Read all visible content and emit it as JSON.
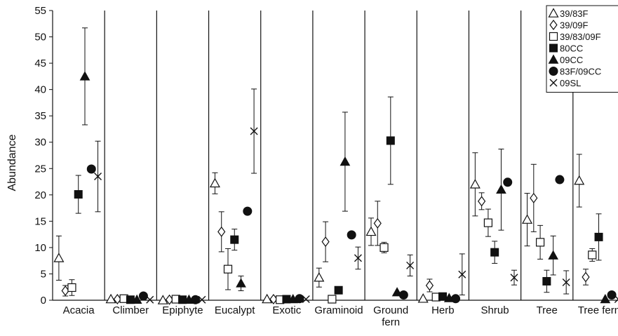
{
  "chart_data": {
    "type": "scatter",
    "ylabel": "Abundance",
    "xlabel": "",
    "ylim": [
      0,
      55
    ],
    "yticks": [
      0,
      5,
      10,
      15,
      20,
      25,
      30,
      35,
      40,
      45,
      50,
      55
    ],
    "grid": false,
    "legend_position": "top-right",
    "error_bars": true,
    "categories": [
      {
        "lines": [
          "Acacia"
        ]
      },
      {
        "lines": [
          "Climber"
        ]
      },
      {
        "lines": [
          "Epiphyte"
        ]
      },
      {
        "lines": [
          "Eucalypt"
        ]
      },
      {
        "lines": [
          "Exotic"
        ]
      },
      {
        "lines": [
          "Graminoid"
        ]
      },
      {
        "lines": [
          "Ground",
          "fern"
        ]
      },
      {
        "lines": [
          "Herb"
        ]
      },
      {
        "lines": [
          "Shrub"
        ]
      },
      {
        "lines": [
          "Tree"
        ]
      },
      {
        "lines": [
          "Tree fern"
        ]
      }
    ],
    "series": [
      {
        "name": "39/83F",
        "marker": "triangle-open",
        "values": [
          8,
          0.2,
          0,
          22.2,
          0.2,
          4.3,
          13,
          0.3,
          22,
          15.3,
          22.7
        ],
        "errors": [
          4.2,
          0,
          0,
          2,
          0,
          1.8,
          2.6,
          0,
          6,
          5,
          5
        ]
      },
      {
        "name": "39/09F",
        "marker": "diamond-open",
        "values": [
          1.8,
          0.2,
          0.1,
          13,
          0.2,
          11.1,
          14.6,
          2.8,
          18.8,
          19.4,
          4.4
        ],
        "errors": [
          1,
          0,
          0,
          3.8,
          0,
          3.8,
          4.2,
          1.2,
          1.6,
          6.4,
          1.5
        ]
      },
      {
        "name": "39/83/09F",
        "marker": "square-open",
        "values": [
          2.4,
          0.3,
          0.2,
          5.9,
          0.1,
          0.2,
          10,
          0.6,
          14.7,
          11,
          8.6
        ],
        "errors": [
          1.5,
          0,
          0,
          3.9,
          0,
          0,
          1,
          0,
          2.6,
          3.2,
          1.2
        ]
      },
      {
        "name": "80CC",
        "marker": "square-filled",
        "values": [
          20.1,
          0.1,
          0.1,
          11.5,
          0.2,
          1.9,
          30.3,
          0.7,
          9.1,
          3.6,
          12
        ],
        "errors": [
          3.6,
          0,
          0,
          2,
          0,
          0.5,
          8.3,
          0,
          2.1,
          2.1,
          4.4
        ]
      },
      {
        "name": "09CC",
        "marker": "triangle-filled",
        "values": [
          42.5,
          0.1,
          0.1,
          3.2,
          0.2,
          26.3,
          1.5,
          0.4,
          21,
          8.5,
          0.2
        ],
        "errors": [
          9.2,
          0,
          0,
          1.4,
          0,
          9.4,
          0,
          0,
          7.7,
          3.7,
          0
        ]
      },
      {
        "name": "83F/09CC",
        "marker": "circle-filled",
        "values": [
          24.9,
          0.8,
          0.1,
          16.9,
          0.3,
          12.4,
          1,
          0.3,
          22.4,
          22.9,
          1
        ]
      },
      {
        "name": "09SL",
        "marker": "x",
        "values": [
          23.5,
          0.1,
          0.1,
          32.1,
          0.2,
          8,
          6.6,
          4.9,
          4.3,
          3.4,
          0.2
        ],
        "errors": [
          6.7,
          0,
          0,
          8,
          0,
          2.1,
          2,
          3.9,
          1.4,
          2.2,
          0
        ]
      }
    ]
  }
}
